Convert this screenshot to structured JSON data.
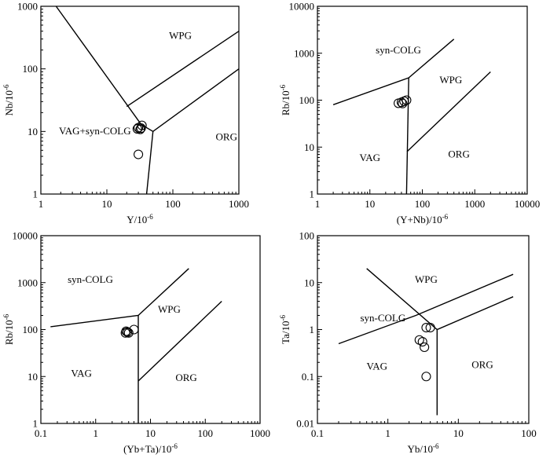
{
  "chart_data": [
    {
      "type": "scatter",
      "xlabel_base": "Y/10",
      "ylabel_base": "Nb/10",
      "label_exponent": "-6",
      "x_log": true,
      "y_log": true,
      "xlim": [
        1,
        1000
      ],
      "ylim": [
        1,
        1000
      ],
      "x_ticks": [
        "1",
        "10",
        "100",
        "1000"
      ],
      "y_ticks": [
        "1",
        "10",
        "100",
        "1000"
      ],
      "boundaries": [
        [
          [
            1.7,
            1000
          ],
          [
            33,
            13
          ],
          [
            50,
            10
          ],
          [
            1000,
            100
          ]
        ],
        [
          [
            20,
            25
          ],
          [
            1000,
            400
          ]
        ],
        [
          [
            50,
            10
          ],
          [
            40,
            1
          ]
        ]
      ],
      "fields": [
        {
          "text": "WPG",
          "x": 130,
          "y": 300
        },
        {
          "text": "VAG+syn-COLG",
          "x": 6.6,
          "y": 9
        },
        {
          "text": "ORG",
          "x": 650,
          "y": 7.2
        }
      ],
      "points": [
        [
          34,
          12.5
        ],
        [
          30,
          11.5
        ],
        [
          32,
          10.8
        ],
        [
          29,
          11
        ],
        [
          33,
          11.3
        ],
        [
          30,
          4.3
        ]
      ]
    },
    {
      "type": "scatter",
      "xlabel_base": "(Y+Nb)/10",
      "ylabel_base": "Rb/10",
      "label_exponent": "-6",
      "x_log": true,
      "y_log": true,
      "xlim": [
        1,
        10000
      ],
      "ylim": [
        1,
        10000
      ],
      "x_ticks": [
        "1",
        "10",
        "100",
        "1000",
        "10000"
      ],
      "y_ticks": [
        "1",
        "10",
        "100",
        "1000",
        "10000"
      ],
      "boundaries": [
        [
          [
            2,
            80
          ],
          [
            55,
            300
          ],
          [
            400,
            2000
          ]
        ],
        [
          [
            55,
            300
          ],
          [
            50,
            1
          ]
        ],
        [
          [
            51,
            8
          ],
          [
            2000,
            400
          ]
        ]
      ],
      "fields": [
        {
          "text": "syn-COLG",
          "x": 35,
          "y": 1000
        },
        {
          "text": "WPG",
          "x": 350,
          "y": 230
        },
        {
          "text": "VAG",
          "x": 10,
          "y": 5
        },
        {
          "text": "ORG",
          "x": 500,
          "y": 6
        }
      ],
      "points": [
        [
          35,
          86
        ],
        [
          40,
          90
        ],
        [
          42,
          85
        ],
        [
          45,
          95
        ],
        [
          50,
          100
        ]
      ]
    },
    {
      "type": "scatter",
      "xlabel_base": "(Yb+Ta)/10",
      "ylabel_base": "Rb/10",
      "label_exponent": "-6",
      "x_log": true,
      "y_log": true,
      "xlim": [
        0.1,
        1000
      ],
      "ylim": [
        1,
        10000
      ],
      "x_ticks": [
        "0.1",
        "1",
        "10",
        "100",
        "1000"
      ],
      "y_ticks": [
        "1",
        "10",
        "100",
        "1000",
        "10000"
      ],
      "boundaries": [
        [
          [
            0.15,
            115
          ],
          [
            6,
            200
          ],
          [
            50,
            2000
          ]
        ],
        [
          [
            6,
            200
          ],
          [
            6,
            1
          ]
        ],
        [
          [
            6,
            8
          ],
          [
            200,
            400
          ]
        ]
      ],
      "fields": [
        {
          "text": "syn-COLG",
          "x": 0.8,
          "y": 1000
        },
        {
          "text": "WPG",
          "x": 22,
          "y": 230
        },
        {
          "text": "VAG",
          "x": 0.55,
          "y": 10
        },
        {
          "text": "ORG",
          "x": 45,
          "y": 8
        }
      ],
      "points": [
        [
          3.5,
          85
        ],
        [
          3.6,
          92
        ],
        [
          3.8,
          88
        ],
        [
          4.0,
          85
        ],
        [
          5.0,
          100
        ]
      ]
    },
    {
      "type": "scatter",
      "xlabel_base": "Yb/10",
      "ylabel_base": "Ta/10",
      "label_exponent": "-6",
      "x_log": true,
      "y_log": true,
      "xlim": [
        0.1,
        100
      ],
      "ylim": [
        0.01,
        100
      ],
      "x_ticks": [
        "0.1",
        "1",
        "10",
        "100"
      ],
      "y_ticks": [
        "0.01",
        "0.1",
        "1",
        "10",
        "100"
      ],
      "boundaries": [
        [
          [
            0.5,
            20
          ],
          [
            5,
            1
          ],
          [
            60,
            5
          ]
        ],
        [
          [
            0.2,
            0.5
          ],
          [
            2.5,
            2
          ],
          [
            60,
            15
          ]
        ],
        [
          [
            5,
            1
          ],
          [
            5,
            0.015
          ]
        ]
      ],
      "fields": [
        {
          "text": "WPG",
          "x": 3.5,
          "y": 10
        },
        {
          "text": "syn-COLG",
          "x": 0.85,
          "y": 1.5
        },
        {
          "text": "VAG",
          "x": 0.7,
          "y": 0.14
        },
        {
          "text": "ORG",
          "x": 22,
          "y": 0.15
        }
      ],
      "points": [
        [
          3.5,
          1.1
        ],
        [
          4.0,
          1.1
        ],
        [
          2.8,
          0.6
        ],
        [
          3.1,
          0.55
        ],
        [
          3.3,
          0.42
        ],
        [
          3.5,
          0.1
        ]
      ]
    }
  ]
}
